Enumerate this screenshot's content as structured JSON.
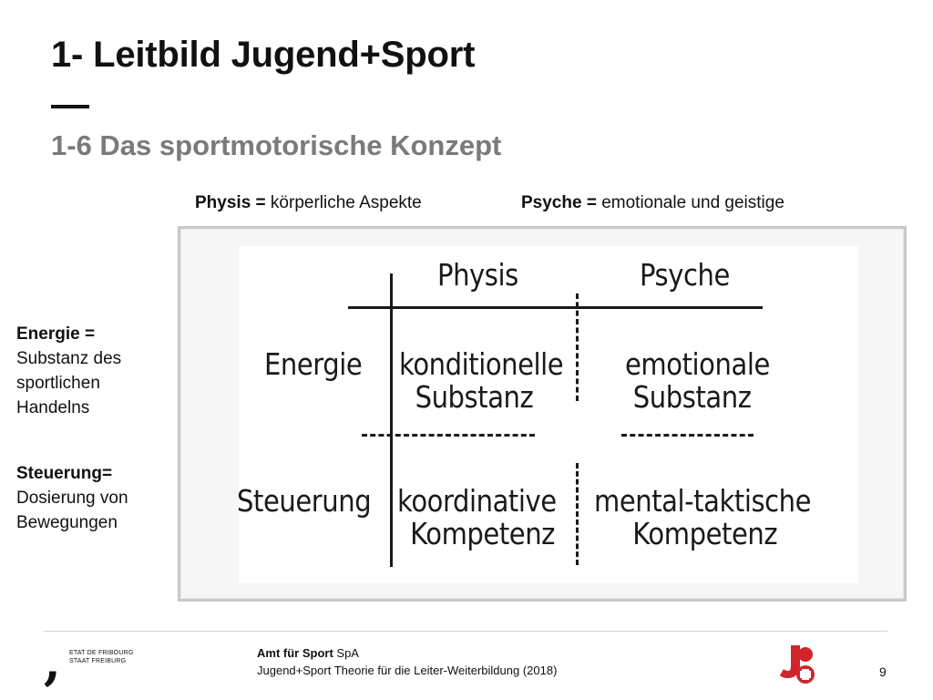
{
  "slide": {
    "title": "1- Leitbild Jugend+Sport",
    "subtitle": "1-6 Das sportmotorische Konzept"
  },
  "definitions": {
    "physis_term": "Physis =",
    "physis_desc": " körperliche Aspekte",
    "psyche_term": "Psyche =",
    "psyche_desc": " emotionale und geistige"
  },
  "side_notes": {
    "energie_term": "Energie =",
    "energie_lines": [
      "Substanz des",
      "sportlichen",
      "Handelns"
    ],
    "steuerung_term": "Steuerung=",
    "steuerung_lines": [
      "Dosierung von",
      "Bewegungen"
    ]
  },
  "sketch": {
    "col_physis": "Physis",
    "col_psyche": "Psyche",
    "row_energie": "Energie",
    "row_steuerung": "Steuerung",
    "cell_energie_physis": [
      "konditionelle",
      "Substanz"
    ],
    "cell_energie_psyche": [
      "emotionale",
      "Substanz"
    ],
    "cell_steuerung_physis": [
      "koordinative",
      "Kompetenz"
    ],
    "cell_steuerung_psyche": [
      "mental-taktische",
      "Kompetenz"
    ]
  },
  "footer": {
    "canton_line1": "ETAT DE FRIBOURG",
    "canton_line2": "STAAT FREIBURG",
    "org_bold": "Amt für Sport",
    "org_suffix": " SpA",
    "course": "Jugend+Sport Theorie für die Leiter-Weiterbildung (2018)",
    "page_number": "9"
  },
  "colors": {
    "subtitle": "#7a7a7a",
    "logo_red": "#d2232a"
  }
}
